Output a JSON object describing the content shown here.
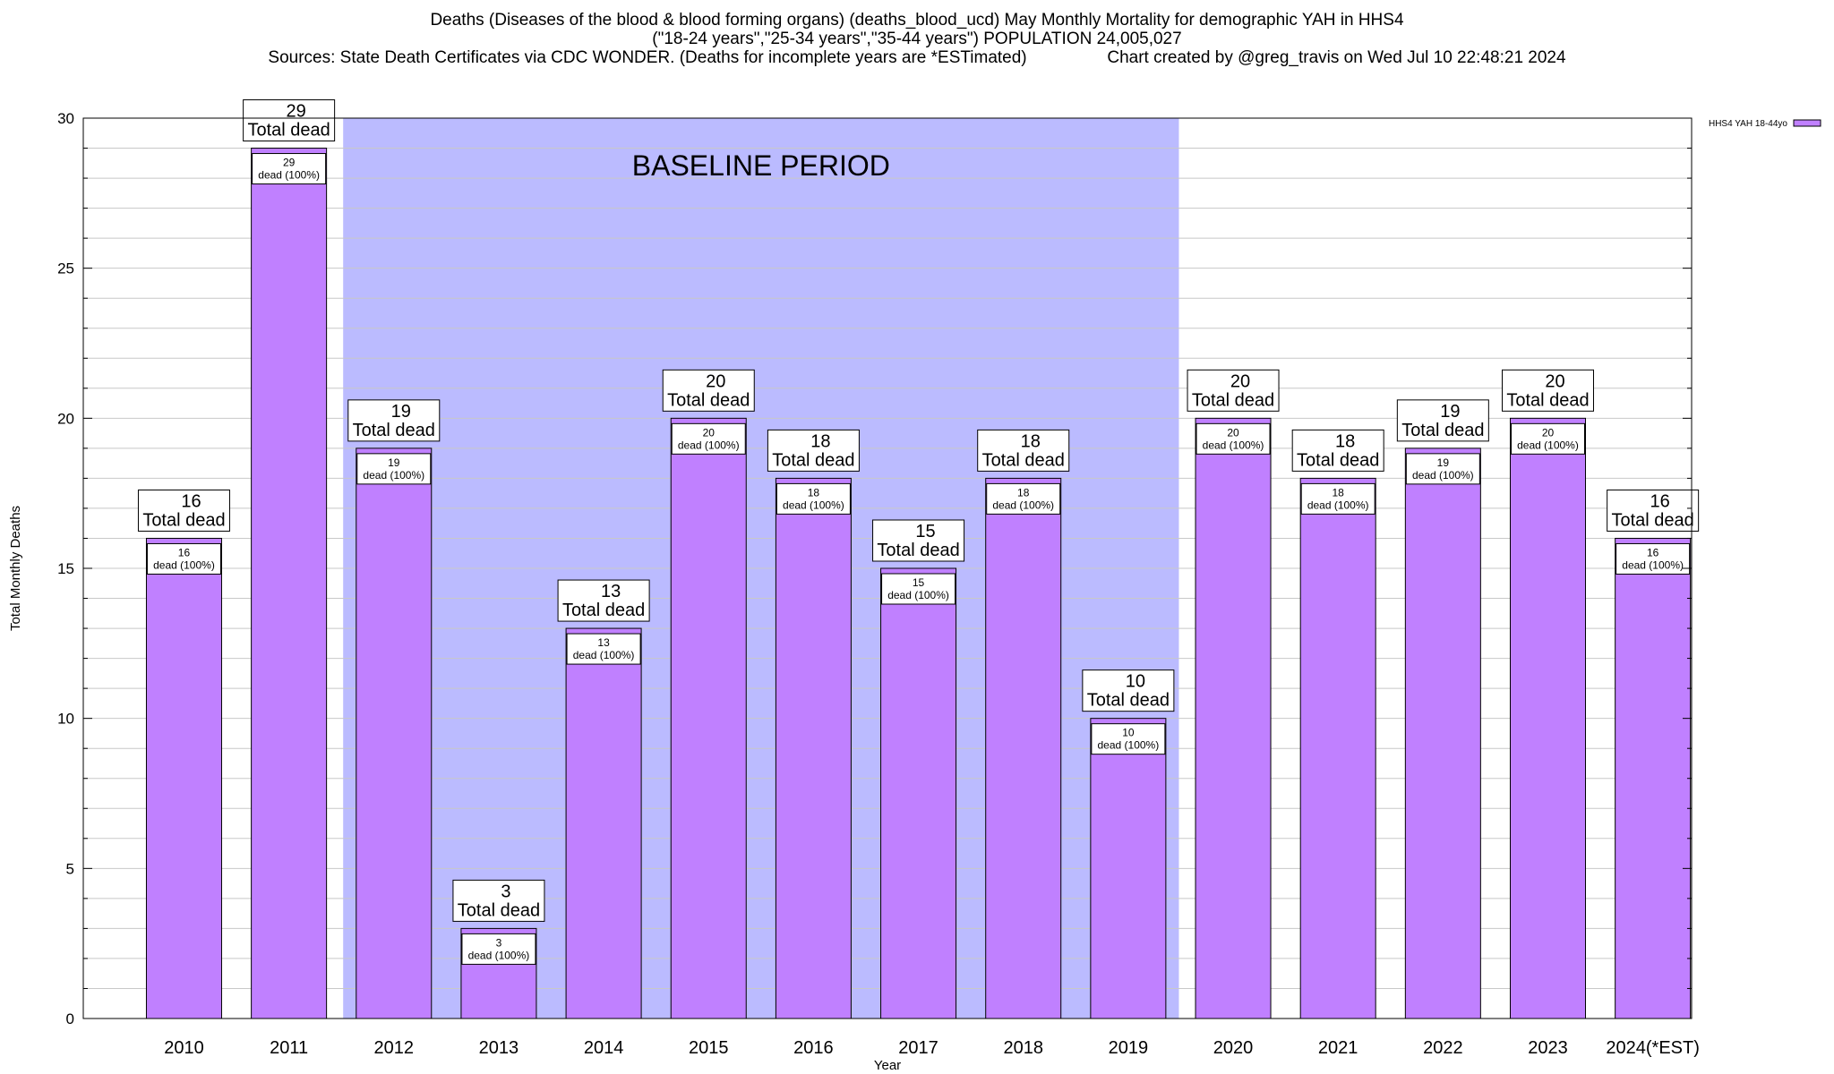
{
  "titles": {
    "line1": "Deaths (Diseases of the blood & blood forming organs) (deaths_blood_ucd) May Monthly Mortality for demographic YAH in HHS4",
    "line2": "(\"18-24 years\",\"25-34 years\",\"35-44 years\") POPULATION 24,005,027",
    "line3": "Sources: State Death Certificates via CDC WONDER. (Deaths for incomplete years are *ESTimated)                 Chart created by @greg_travis on Wed Jul 10 22:48:21 2024"
  },
  "chart_data": {
    "type": "bar",
    "xlabel": "Year",
    "ylabel": "Total Monthly Deaths",
    "ylim": [
      0,
      30
    ],
    "yticks": [
      0,
      5,
      10,
      15,
      20,
      25,
      30
    ],
    "grid": true,
    "legend_position": "top-right",
    "categories": [
      "2010",
      "2011",
      "2012",
      "2013",
      "2014",
      "2015",
      "2016",
      "2017",
      "2018",
      "2019",
      "2020",
      "2021",
      "2022",
      "2023",
      "2024(*EST)"
    ],
    "series": [
      {
        "name": "HHS4 YAH 18-44yo",
        "color": "#c080ff",
        "values": [
          16,
          29,
          19,
          3,
          13,
          20,
          18,
          15,
          18,
          10,
          20,
          18,
          19,
          20,
          16
        ]
      }
    ],
    "total_label_suffix": "Total dead",
    "inner_label_suffix": "dead (100%)",
    "annotations": {
      "baseline_label": "BASELINE PERIOD",
      "baseline_start": "2012",
      "baseline_end": "2019",
      "baseline_color": "#bbbbff"
    }
  }
}
